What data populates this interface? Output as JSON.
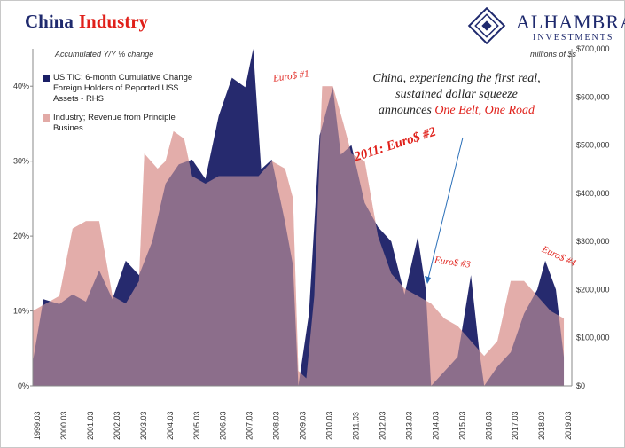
{
  "title_part1": "China",
  "title_part2": "Industry",
  "logo": {
    "name": "ALHAMBRA",
    "sub": "INVESTMENTS"
  },
  "axis": {
    "left_label": "Accumulated Y/Y % change",
    "right_label": "millions of $s",
    "left_ticks": [
      "0%",
      "10%",
      "20%",
      "30%",
      "40%"
    ],
    "right_ticks": [
      "$0",
      "$100,000",
      "$200,000",
      "$300,000",
      "$400,000",
      "$500,000",
      "$600,000",
      "$700,000"
    ],
    "x_ticks": [
      "1999.03",
      "2000.03",
      "2001.03",
      "2002.03",
      "2003.03",
      "2004.03",
      "2005.03",
      "2006.03",
      "2007.03",
      "2008.03",
      "2009.03",
      "2010.03",
      "2011.03",
      "2012.03",
      "2013.03",
      "2014.03",
      "2015.03",
      "2016.03",
      "2017.03",
      "2018.03",
      "2019.03"
    ]
  },
  "legend": {
    "series1_line1": "US TIC: 6-month Cumulative Change",
    "series1_line2": "Foreign Holders of Reported US$",
    "series1_line3": "Assets - RHS",
    "series2_line1": "Industry; Revenue from Principle",
    "series2_line2": "Busines"
  },
  "annotations": {
    "euro1": "Euro$ #1",
    "euro2": "2011: Euro$ #2",
    "euro3": "Euro$ #3",
    "euro4": "Euro$ #4",
    "main_line1": "China, experiencing the first real,",
    "main_line2": "sustained dollar squeeze",
    "main_line3a": "announces ",
    "main_line3b": "One Belt, One Road"
  },
  "colors": {
    "tic": "#1a1f66",
    "industry": "#e2aaa6",
    "accent": "#e0201a"
  },
  "chart_data": {
    "type": "area",
    "x_start": "1999.03",
    "x_end": "2019.03",
    "ylim_left": [
      0,
      45
    ],
    "ylim_right": [
      0,
      700000
    ],
    "grid": false,
    "legend_position": "top-left",
    "series": [
      {
        "name": "Industry; Revenue from Principle Busines",
        "axis": "left",
        "points": [
          [
            1999.0,
            10
          ],
          [
            1999.5,
            11
          ],
          [
            2000.0,
            12
          ],
          [
            2000.5,
            21
          ],
          [
            2001.0,
            22
          ],
          [
            2001.5,
            22
          ],
          [
            2002.0,
            12
          ],
          [
            2002.5,
            11
          ],
          [
            2003.0,
            14
          ],
          [
            2003.2,
            31
          ],
          [
            2003.7,
            29
          ],
          [
            2004.0,
            30
          ],
          [
            2004.3,
            34
          ],
          [
            2004.7,
            33
          ],
          [
            2005.0,
            28
          ],
          [
            2005.5,
            27
          ],
          [
            2006.0,
            28
          ],
          [
            2006.5,
            28
          ],
          [
            2007.0,
            28
          ],
          [
            2007.5,
            28
          ],
          [
            2008.0,
            30
          ],
          [
            2008.5,
            29
          ],
          [
            2008.8,
            25
          ],
          [
            2009.0,
            2
          ],
          [
            2009.3,
            1
          ],
          [
            2009.6,
            12
          ],
          [
            2009.9,
            40
          ],
          [
            2010.3,
            40
          ],
          [
            2010.7,
            35
          ],
          [
            2011.0,
            31
          ],
          [
            2011.5,
            30
          ],
          [
            2012.0,
            20
          ],
          [
            2012.5,
            15
          ],
          [
            2013.0,
            13
          ],
          [
            2013.5,
            12
          ],
          [
            2014.0,
            11
          ],
          [
            2014.5,
            9
          ],
          [
            2015.0,
            8
          ],
          [
            2015.5,
            6
          ],
          [
            2016.0,
            4
          ],
          [
            2016.5,
            6
          ],
          [
            2017.0,
            14
          ],
          [
            2017.5,
            14
          ],
          [
            2018.0,
            12
          ],
          [
            2018.5,
            10
          ],
          [
            2019.0,
            9
          ]
        ]
      },
      {
        "name": "US TIC: 6-month Cumulative Change Foreign Holders of Reported US$ Assets - RHS",
        "axis": "right",
        "points": [
          [
            1999.0,
            50000
          ],
          [
            1999.4,
            180000
          ],
          [
            2000.0,
            170000
          ],
          [
            2000.5,
            190000
          ],
          [
            2001.0,
            175000
          ],
          [
            2001.5,
            240000
          ],
          [
            2002.0,
            180000
          ],
          [
            2002.5,
            260000
          ],
          [
            2003.0,
            230000
          ],
          [
            2003.5,
            300000
          ],
          [
            2004.0,
            420000
          ],
          [
            2004.5,
            460000
          ],
          [
            2005.0,
            470000
          ],
          [
            2005.5,
            430000
          ],
          [
            2006.0,
            560000
          ],
          [
            2006.5,
            640000
          ],
          [
            2007.0,
            620000
          ],
          [
            2007.3,
            700000
          ],
          [
            2007.6,
            450000
          ],
          [
            2008.0,
            470000
          ],
          [
            2008.5,
            340000
          ],
          [
            2008.8,
            250000
          ],
          [
            2009.0,
            0
          ],
          [
            2009.4,
            150000
          ],
          [
            2009.8,
            520000
          ],
          [
            2010.3,
            620000
          ],
          [
            2010.6,
            480000
          ],
          [
            2011.0,
            500000
          ],
          [
            2011.5,
            380000
          ],
          [
            2012.0,
            330000
          ],
          [
            2012.5,
            300000
          ],
          [
            2013.0,
            190000
          ],
          [
            2013.5,
            310000
          ],
          [
            2013.8,
            200000
          ],
          [
            2014.0,
            0
          ],
          [
            2014.5,
            30000
          ],
          [
            2015.0,
            60000
          ],
          [
            2015.5,
            230000
          ],
          [
            2015.8,
            80000
          ],
          [
            2016.0,
            0
          ],
          [
            2016.5,
            40000
          ],
          [
            2017.0,
            70000
          ],
          [
            2017.5,
            150000
          ],
          [
            2018.0,
            200000
          ],
          [
            2018.3,
            260000
          ],
          [
            2018.7,
            200000
          ],
          [
            2019.0,
            60000
          ]
        ]
      }
    ]
  }
}
